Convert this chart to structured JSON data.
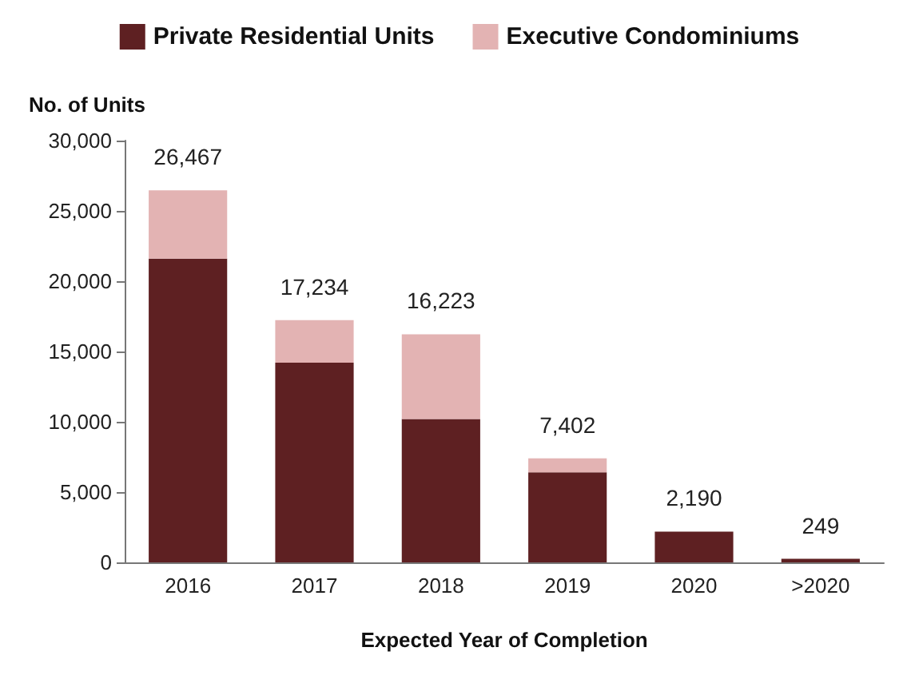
{
  "chart_data": {
    "type": "bar",
    "stacked": true,
    "ylabel": "No. of Units",
    "xlabel": "Expected Year of Completion",
    "categories": [
      "2016",
      "2017",
      "2018",
      "2019",
      "2020",
      ">2020"
    ],
    "series": [
      {
        "name": "Private Residential Units",
        "color": "#5e2022",
        "values": [
          21600,
          14200,
          10200,
          6400,
          2190,
          249
        ]
      },
      {
        "name": "Executive Condominiums",
        "color": "#e3b3b3",
        "values": [
          4867,
          3034,
          6023,
          1002,
          0,
          0
        ]
      }
    ],
    "totals": [
      "26,467",
      "17,234",
      "16,223",
      "7,402",
      "2,190",
      "249"
    ],
    "ylim": [
      0,
      30000
    ],
    "yticks": [
      0,
      {
        "value": 5000,
        "label": "5,000"
      },
      {
        "value": 10000,
        "label": "10,000"
      },
      {
        "value": 15000,
        "label": "15,000"
      },
      {
        "value": 20000,
        "label": "20,000"
      },
      {
        "value": 25000,
        "label": "25,000"
      },
      {
        "value": 30000,
        "label": "30,000"
      }
    ],
    "grid": false,
    "legend": "top"
  }
}
